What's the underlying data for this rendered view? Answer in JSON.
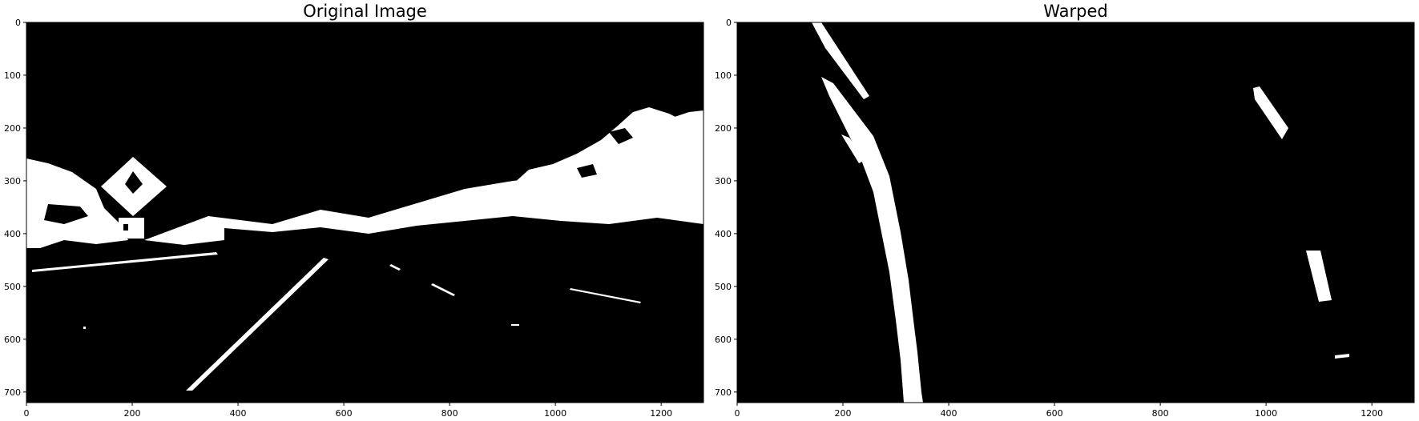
{
  "panels": [
    {
      "title": "Original Image",
      "x_ticks": [
        "0",
        "200",
        "400",
        "600",
        "800",
        "1000",
        "1200"
      ],
      "y_ticks": [
        "0",
        "100",
        "200",
        "300",
        "400",
        "500",
        "600",
        "700"
      ],
      "x_tick_values": [
        0,
        200,
        400,
        600,
        800,
        1000,
        1200
      ],
      "y_tick_values": [
        0,
        100,
        200,
        300,
        400,
        500,
        600,
        700
      ],
      "image_extent": {
        "width": 1280,
        "height": 720
      },
      "image": "binary-thresholded-road-scene"
    },
    {
      "title": "Warped",
      "x_ticks": [
        "0",
        "200",
        "400",
        "600",
        "800",
        "1000",
        "1200"
      ],
      "y_ticks": [
        "0",
        "100",
        "200",
        "300",
        "400",
        "500",
        "600",
        "700"
      ],
      "x_tick_values": [
        0,
        200,
        400,
        600,
        800,
        1000,
        1200
      ],
      "y_tick_values": [
        0,
        100,
        200,
        300,
        400,
        500,
        600,
        700
      ],
      "image_extent": {
        "width": 1280,
        "height": 720
      },
      "image": "birds-eye-lane-lines"
    }
  ]
}
